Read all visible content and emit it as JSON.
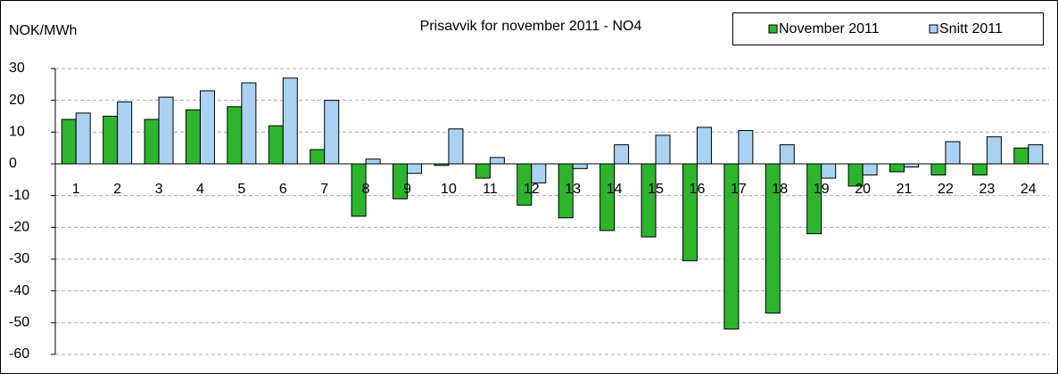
{
  "chart_data": {
    "type": "bar",
    "title": "Prisavvik for november 2011 - NO4",
    "y_label": "NOK/MWh",
    "categories": [
      "1",
      "2",
      "3",
      "4",
      "5",
      "6",
      "7",
      "8",
      "9",
      "10",
      "11",
      "12",
      "13",
      "14",
      "15",
      "16",
      "17",
      "18",
      "19",
      "20",
      "21",
      "22",
      "23",
      "24"
    ],
    "series": [
      {
        "name": "November 2011",
        "color": "#2db52d",
        "values": [
          14,
          15,
          14,
          17,
          18,
          12,
          4.5,
          -16.5,
          -11,
          -0.5,
          -4.5,
          -13,
          -17,
          -21,
          -23,
          -30.5,
          -52,
          -47,
          -22,
          -7,
          -2.5,
          -3.5,
          -3.5,
          5
        ]
      },
      {
        "name": "Snitt 2011",
        "color": "#a9d2f2",
        "values": [
          16,
          19.5,
          21,
          23,
          25.5,
          27,
          20,
          1.5,
          -3,
          11,
          2,
          -6,
          -1.5,
          6,
          9,
          11.5,
          10.5,
          6,
          -4.5,
          -3.5,
          -1,
          7,
          8.5,
          6
        ]
      }
    ],
    "ylim": [
      -60,
      30
    ],
    "yticks": [
      -60,
      -50,
      -40,
      -30,
      -20,
      -10,
      0,
      10,
      20,
      30
    ],
    "grid": true
  }
}
